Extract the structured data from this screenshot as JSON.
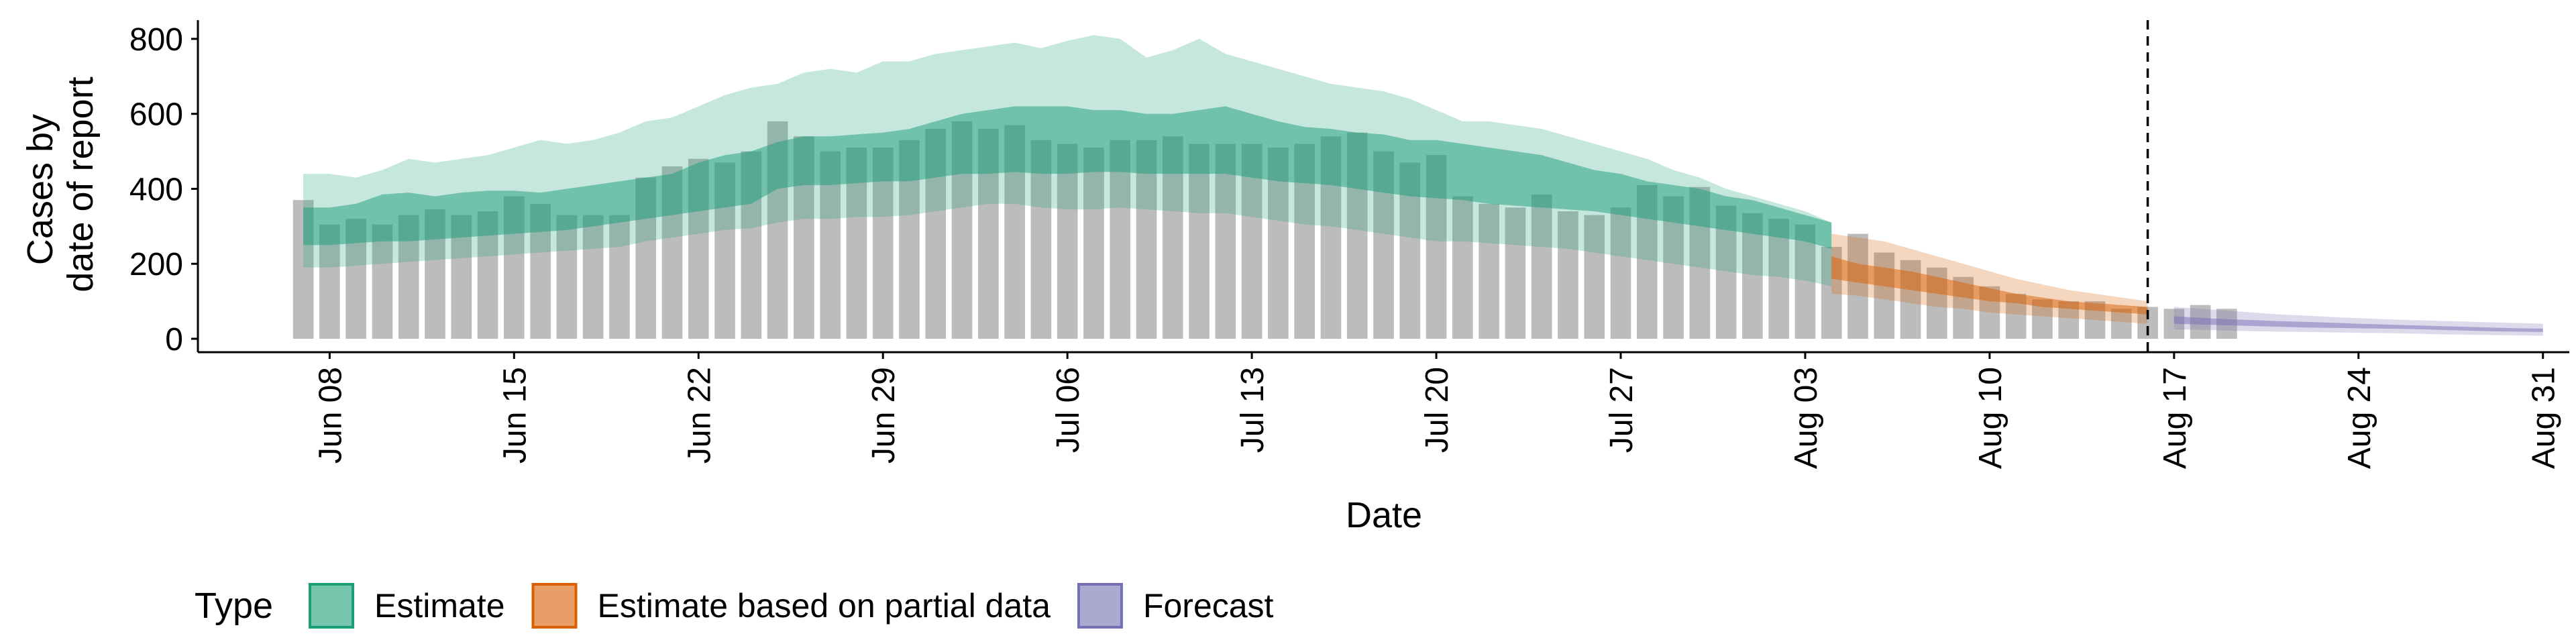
{
  "chart_data": {
    "type": "bar",
    "title": "",
    "xlabel": "Date",
    "ylabel": [
      "Cases by",
      "date of report"
    ],
    "ylim": [
      0,
      850
    ],
    "yticks": [
      0,
      200,
      400,
      600,
      800
    ],
    "x_range": [
      "2020-06-03",
      "2020-09-01"
    ],
    "xticks": [
      {
        "date": "2020-06-08",
        "label": "Jun 08"
      },
      {
        "date": "2020-06-15",
        "label": "Jun 15"
      },
      {
        "date": "2020-06-22",
        "label": "Jun 22"
      },
      {
        "date": "2020-06-29",
        "label": "Jun 29"
      },
      {
        "date": "2020-07-06",
        "label": "Jul 06"
      },
      {
        "date": "2020-07-13",
        "label": "Jul 13"
      },
      {
        "date": "2020-07-20",
        "label": "Jul 20"
      },
      {
        "date": "2020-07-27",
        "label": "Jul 27"
      },
      {
        "date": "2020-08-03",
        "label": "Aug 03"
      },
      {
        "date": "2020-08-10",
        "label": "Aug 10"
      },
      {
        "date": "2020-08-17",
        "label": "Aug 17"
      },
      {
        "date": "2020-08-24",
        "label": "Aug 24"
      },
      {
        "date": "2020-08-31",
        "label": "Aug 31"
      }
    ],
    "reference_line_date": "2020-08-16",
    "grid": false,
    "legend_position": "bottom",
    "legend_title": "Type",
    "bars": {
      "start_date": "2020-06-07",
      "color": "#a0a0a0",
      "values": [
        370,
        305,
        320,
        305,
        330,
        345,
        330,
        340,
        380,
        360,
        330,
        330,
        330,
        430,
        460,
        480,
        470,
        500,
        580,
        540,
        500,
        510,
        510,
        530,
        560,
        580,
        560,
        570,
        530,
        520,
        510,
        530,
        530,
        540,
        520,
        520,
        520,
        510,
        520,
        540,
        550,
        500,
        470,
        490,
        380,
        360,
        350,
        385,
        340,
        330,
        350,
        410,
        380,
        405,
        355,
        335,
        320,
        305,
        245,
        280,
        230,
        210,
        190,
        165,
        140,
        120,
        105,
        100,
        100,
        80,
        85,
        80,
        90,
        80
      ]
    },
    "series": [
      {
        "name": "Estimate",
        "color": "#1b9e77",
        "start_date": "2020-06-07",
        "inner_lower": [
          250,
          250,
          255,
          260,
          260,
          265,
          270,
          275,
          280,
          285,
          290,
          300,
          310,
          320,
          330,
          340,
          350,
          360,
          400,
          410,
          410,
          415,
          420,
          420,
          430,
          440,
          440,
          445,
          440,
          440,
          445,
          445,
          440,
          440,
          440,
          440,
          430,
          420,
          415,
          410,
          400,
          390,
          380,
          375,
          370,
          360,
          355,
          350,
          345,
          340,
          330,
          320,
          310,
          300,
          290,
          280,
          270,
          260,
          240
        ],
        "inner_upper": [
          350,
          350,
          360,
          385,
          390,
          380,
          390,
          395,
          395,
          390,
          400,
          410,
          420,
          430,
          440,
          470,
          490,
          500,
          525,
          540,
          540,
          545,
          550,
          560,
          580,
          600,
          610,
          620,
          620,
          620,
          610,
          610,
          600,
          600,
          610,
          620,
          600,
          580,
          565,
          560,
          550,
          545,
          530,
          530,
          520,
          510,
          500,
          490,
          470,
          450,
          440,
          420,
          410,
          400,
          380,
          370,
          350,
          330,
          310
        ],
        "outer_lower": [
          190,
          190,
          195,
          200,
          205,
          210,
          215,
          220,
          225,
          230,
          235,
          240,
          245,
          260,
          270,
          280,
          290,
          295,
          310,
          320,
          320,
          325,
          325,
          330,
          340,
          350,
          360,
          360,
          350,
          345,
          345,
          350,
          345,
          340,
          335,
          335,
          325,
          315,
          305,
          300,
          290,
          280,
          270,
          260,
          260,
          255,
          250,
          245,
          240,
          230,
          220,
          210,
          200,
          190,
          180,
          170,
          165,
          155,
          140
        ],
        "outer_upper": [
          440,
          440,
          430,
          450,
          480,
          470,
          480,
          490,
          510,
          530,
          520,
          530,
          550,
          580,
          590,
          620,
          650,
          670,
          680,
          710,
          720,
          710,
          740,
          740,
          760,
          770,
          780,
          790,
          775,
          795,
          810,
          800,
          750,
          770,
          800,
          760,
          740,
          720,
          700,
          680,
          670,
          660,
          640,
          610,
          580,
          580,
          570,
          560,
          540,
          520,
          500,
          480,
          450,
          430,
          400,
          380,
          360,
          340,
          310
        ]
      },
      {
        "name": "Estimate based on partial data",
        "color": "#d95f02",
        "start_date": "2020-08-04",
        "inner_lower": [
          160,
          150,
          140,
          130,
          120,
          110,
          100,
          95,
          85,
          80,
          75,
          70,
          65
        ],
        "inner_upper": [
          220,
          200,
          190,
          180,
          165,
          150,
          135,
          120,
          110,
          100,
          95,
          90,
          85
        ],
        "outer_lower": [
          120,
          115,
          105,
          95,
          85,
          80,
          70,
          65,
          60,
          55,
          50,
          45,
          40
        ],
        "outer_upper": [
          280,
          270,
          260,
          240,
          220,
          200,
          180,
          160,
          145,
          130,
          120,
          110,
          100
        ]
      },
      {
        "name": "Forecast",
        "color": "#7570b3",
        "start_date": "2020-08-17",
        "inner_lower": [
          40,
          38,
          36,
          34,
          32,
          30,
          29,
          28,
          27,
          26,
          24,
          22,
          20,
          19,
          18
        ],
        "inner_upper": [
          60,
          56,
          52,
          50,
          47,
          45,
          43,
          40,
          38,
          36,
          34,
          32,
          30,
          28,
          27
        ],
        "outer_lower": [
          25,
          24,
          22,
          20,
          19,
          18,
          17,
          16,
          15,
          14,
          12,
          11,
          10,
          9,
          8
        ],
        "outer_upper": [
          85,
          80,
          75,
          70,
          65,
          62,
          58,
          55,
          52,
          50,
          48,
          46,
          44,
          42,
          40
        ]
      }
    ]
  }
}
